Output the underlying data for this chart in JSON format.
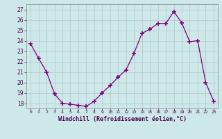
{
  "x": [
    0,
    1,
    2,
    3,
    4,
    5,
    6,
    7,
    8,
    9,
    10,
    11,
    12,
    13,
    14,
    15,
    16,
    17,
    18,
    19,
    20,
    21,
    22,
    23
  ],
  "y": [
    23.7,
    22.3,
    21.0,
    18.9,
    18.0,
    17.9,
    17.8,
    17.7,
    18.2,
    19.0,
    19.7,
    20.5,
    21.2,
    22.8,
    24.7,
    25.1,
    25.65,
    25.65,
    26.8,
    25.7,
    23.9,
    24.0,
    20.0,
    18.2
  ],
  "line_color": "#800080",
  "marker_color": "#800080",
  "bg_color": "#cce8e8",
  "grid_color": "#bbcccc",
  "xlabel": "Windchill (Refroidissement éolien,°C)",
  "ylim": [
    17.5,
    27.5
  ],
  "xlim": [
    -0.5,
    23.5
  ],
  "yticks": [
    18,
    19,
    20,
    21,
    22,
    23,
    24,
    25,
    26,
    27
  ],
  "xtick_labels": [
    "0",
    "1",
    "2",
    "3",
    "4",
    "5",
    "6",
    "7",
    "8",
    "9",
    "10",
    "11",
    "12",
    "13",
    "14",
    "15",
    "16",
    "17",
    "18",
    "19",
    "20",
    "21",
    "22",
    "23"
  ]
}
